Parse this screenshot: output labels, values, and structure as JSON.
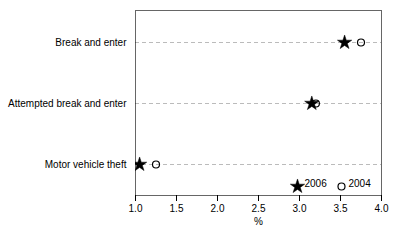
{
  "chart_data": {
    "type": "dot",
    "xlabel": "%",
    "categories": [
      "Break and enter",
      "Attempted break and enter",
      "Motor vehicle theft"
    ],
    "series": [
      {
        "name": "2006",
        "color": "#000000",
        "marker": "star",
        "values": [
          3.55,
          3.15,
          1.05
        ]
      },
      {
        "name": "2004",
        "color": "#000000",
        "marker": "circle",
        "values": [
          3.75,
          3.2,
          1.25
        ]
      }
    ],
    "xlim": [
      1.0,
      4.0
    ],
    "xticks": [
      {
        "value": 1.0,
        "label": "1.0"
      },
      1.5,
      {
        "value": 2.0,
        "label": "2.0"
      },
      2.5,
      {
        "value": 3.0,
        "label": "3.0"
      },
      3.5,
      {
        "value": 4.0,
        "label": "4.0"
      }
    ],
    "grid": true,
    "legend": "lower right"
  }
}
